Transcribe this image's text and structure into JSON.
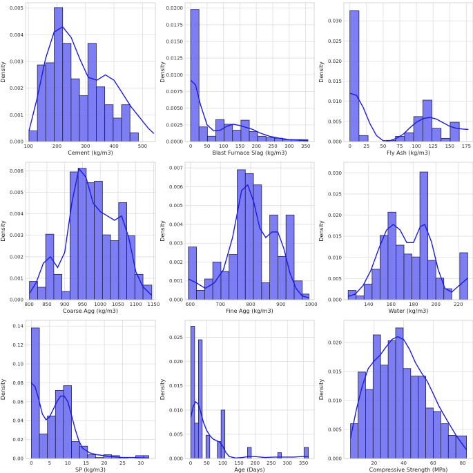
{
  "chart_data": [
    {
      "type": "bar",
      "xlabel": "Cement (kg/m3)",
      "ylabel": "Density",
      "xlim": [
        90,
        545
      ],
      "ylim": [
        0,
        0.0052
      ],
      "xticks": [
        100,
        200,
        300,
        400,
        500
      ],
      "yticks": [
        0.0,
        0.001,
        0.002,
        0.003,
        0.004,
        0.005
      ],
      "ytick_labels": [
        "0.000",
        "0.001",
        "0.002",
        "0.003",
        "0.004",
        "0.005"
      ],
      "xtick_labels": [
        "100",
        "200",
        "300",
        "400",
        "500"
      ],
      "bin_edges": [
        102,
        131.5,
        161,
        190.5,
        220,
        249.5,
        279,
        308.5,
        338,
        367.5,
        397,
        426.5,
        456,
        485.5,
        515,
        540
      ],
      "values": [
        0.0004,
        0.00287,
        0.00295,
        0.00502,
        0.00368,
        0.00235,
        0.00172,
        0.00368,
        0.00205,
        0.00138,
        0.00088,
        0.00138,
        0.00033,
        0.0,
        0.0
      ],
      "kde_x": [
        102,
        130,
        160,
        190,
        220,
        250,
        280,
        310,
        340,
        370,
        400,
        430,
        460,
        490,
        520,
        540
      ],
      "kde_y": [
        0.0004,
        0.0016,
        0.0031,
        0.0041,
        0.0043,
        0.0039,
        0.0031,
        0.0024,
        0.0023,
        0.0025,
        0.0023,
        0.0018,
        0.0013,
        0.0009,
        0.0005,
        0.0003
      ]
    },
    {
      "type": "bar",
      "xlabel": "Blast Furnace Slag (kg/m3)",
      "ylabel": "Density",
      "xlim": [
        -17,
        376
      ],
      "ylim": [
        0,
        0.0208
      ],
      "xticks": [
        0,
        50,
        100,
        150,
        200,
        250,
        300,
        350
      ],
      "xtick_labels": [
        "0",
        "50",
        "100",
        "150",
        "200",
        "250",
        "300",
        "350"
      ],
      "yticks": [
        0.0,
        0.0025,
        0.005,
        0.0075,
        0.01,
        0.0125,
        0.015,
        0.0175,
        0.02
      ],
      "ytick_labels": [
        "0.0000",
        "0.0025",
        "0.0050",
        "0.0075",
        "0.0100",
        "0.0125",
        "0.0150",
        "0.0175",
        "0.0200"
      ],
      "bin_edges": [
        0,
        25.5,
        51,
        76.5,
        102,
        127.5,
        153,
        178.5,
        204,
        229.5,
        255,
        280.5,
        306,
        331.5,
        357
      ],
      "values": [
        0.0198,
        0.0022,
        0.0008,
        0.0033,
        0.0026,
        0.0017,
        0.0032,
        0.0015,
        0.0008,
        0.0006,
        0.0005,
        0.0003,
        0.0003,
        0.0003
      ],
      "kde_x": [
        0,
        15,
        30,
        50,
        70,
        90,
        110,
        130,
        150,
        170,
        190,
        210,
        240,
        270,
        300,
        330,
        357
      ],
      "kde_y": [
        0.0092,
        0.0085,
        0.0055,
        0.0025,
        0.0016,
        0.0017,
        0.0023,
        0.0026,
        0.0024,
        0.0021,
        0.0018,
        0.0013,
        0.0008,
        0.0005,
        0.0003,
        0.0002,
        0.0001
      ]
    },
    {
      "type": "bar",
      "xlabel": "Fly Ash (kg/m3)",
      "ylabel": "Density",
      "xlim": [
        -9,
        185
      ],
      "ylim": [
        0,
        0.0345
      ],
      "xticks": [
        0,
        25,
        50,
        75,
        100,
        125,
        150,
        175
      ],
      "xtick_labels": [
        "0",
        "25",
        "50",
        "75",
        "100",
        "125",
        "150",
        "175"
      ],
      "yticks": [
        0.0,
        0.005,
        0.01,
        0.015,
        0.02,
        0.025,
        0.03
      ],
      "ytick_labels": [
        "0.000",
        "0.005",
        "0.010",
        "0.015",
        "0.020",
        "0.025",
        "0.030"
      ],
      "bin_edges": [
        0,
        13.7,
        27.4,
        41.1,
        54.8,
        68.5,
        82.2,
        95.9,
        109.6,
        123.3,
        137,
        150.7,
        164.4,
        178
      ],
      "values": [
        0.0325,
        0.0015,
        0.0,
        0.0,
        0.0003,
        0.0013,
        0.0022,
        0.0062,
        0.0103,
        0.0033,
        0.0008,
        0.0048,
        0.0
      ],
      "kde_x": [
        0,
        10,
        20,
        30,
        40,
        50,
        60,
        70,
        80,
        90,
        100,
        110,
        120,
        130,
        140,
        150,
        160,
        170,
        178
      ],
      "kde_y": [
        0.012,
        0.0115,
        0.0085,
        0.0045,
        0.0015,
        0.0002,
        0.0002,
        0.0008,
        0.0018,
        0.0034,
        0.0048,
        0.0057,
        0.006,
        0.0056,
        0.0047,
        0.0038,
        0.0033,
        0.0031,
        0.003
      ]
    },
    {
      "type": "bar",
      "xlabel": "Coarse Agg (kg/m3)",
      "ylabel": "Density",
      "xlim": [
        790,
        1155
      ],
      "ylim": [
        0,
        0.0064
      ],
      "xticks": [
        800,
        850,
        900,
        950,
        1000,
        1050,
        1100,
        1150
      ],
      "xtick_labels": [
        "800",
        "850",
        "900",
        "950",
        "1000",
        "1050",
        "1100",
        "1150"
      ],
      "yticks": [
        0.0,
        0.001,
        0.002,
        0.003,
        0.004,
        0.005,
        0.006
      ],
      "ytick_labels": [
        "0.000",
        "0.001",
        "0.002",
        "0.003",
        "0.004",
        "0.005",
        "0.006"
      ],
      "bin_edges": [
        801,
        823.8,
        846.6,
        869.4,
        892.2,
        915,
        937.8,
        960.6,
        983.4,
        1006.2,
        1029,
        1051.8,
        1074.6,
        1097.4,
        1120.2,
        1145
      ],
      "values": [
        0.00085,
        0.00058,
        0.00305,
        0.00118,
        0.00038,
        0.00595,
        0.00612,
        0.00545,
        0.00552,
        0.00302,
        0.00275,
        0.00452,
        0.00298,
        0.00118,
        0.00068
      ],
      "kde_x": [
        801,
        820,
        840,
        860,
        880,
        900,
        920,
        940,
        960,
        980,
        1000,
        1020,
        1040,
        1060,
        1080,
        1100,
        1120,
        1145
      ],
      "kde_y": [
        0.0003,
        0.0008,
        0.0017,
        0.002,
        0.0015,
        0.0022,
        0.0045,
        0.0061,
        0.0057,
        0.0045,
        0.0041,
        0.0039,
        0.0037,
        0.0039,
        0.0029,
        0.0013,
        0.0006,
        0.0002
      ]
    },
    {
      "type": "bar",
      "xlabel": "Fine Agg (kg/m3)",
      "ylabel": "Density",
      "xlim": [
        583,
        1010
      ],
      "ylim": [
        0,
        0.0073
      ],
      "xticks": [
        600,
        700,
        800,
        900,
        1000
      ],
      "xtick_labels": [
        "600",
        "700",
        "800",
        "900",
        "1000"
      ],
      "yticks": [
        0.0,
        0.001,
        0.002,
        0.003,
        0.004,
        0.005,
        0.006,
        0.007
      ],
      "ytick_labels": [
        "0.000",
        "0.001",
        "0.002",
        "0.003",
        "0.004",
        "0.005",
        "0.006",
        "0.007"
      ],
      "bin_edges": [
        594,
        620.9,
        647.8,
        674.7,
        701.6,
        728.5,
        755.4,
        782.3,
        809.2,
        836.1,
        863,
        889.9,
        916.8,
        943.7,
        970.6,
        993
      ],
      "values": [
        0.0028,
        0.0005,
        0.0011,
        0.002,
        0.0015,
        0.0024,
        0.0069,
        0.0067,
        0.0061,
        0.0009,
        0.0045,
        0.0023,
        0.0045,
        0.001,
        0.0003
      ],
      "kde_x": [
        594,
        620,
        650,
        680,
        710,
        740,
        770,
        790,
        810,
        830,
        850,
        870,
        890,
        910,
        930,
        950,
        970,
        993
      ],
      "kde_y": [
        0.0011,
        0.0009,
        0.0006,
        0.0009,
        0.0016,
        0.0033,
        0.0058,
        0.0061,
        0.0052,
        0.0038,
        0.0033,
        0.0036,
        0.0036,
        0.0027,
        0.0014,
        0.0006,
        0.0002,
        0.0001
      ]
    },
    {
      "type": "bar",
      "xlabel": "Water (kg/m3)",
      "ylabel": "Density",
      "xlim": [
        118,
        233
      ],
      "ylim": [
        0,
        0.0325
      ],
      "xticks": [
        140,
        160,
        180,
        200,
        220
      ],
      "xtick_labels": [
        "140",
        "160",
        "180",
        "200",
        "220"
      ],
      "yticks": [
        0.0,
        0.005,
        0.01,
        0.015,
        0.02,
        0.025,
        0.03
      ],
      "ytick_labels": [
        "0.000",
        "0.005",
        "0.010",
        "0.015",
        "0.020",
        "0.025",
        "0.030"
      ],
      "bin_edges": [
        121.8,
        128.9,
        136,
        143.1,
        150.2,
        157.3,
        164.4,
        171.5,
        178.6,
        185.7,
        192.8,
        199.9,
        207,
        214.1,
        221.2,
        228.3
      ],
      "values": [
        0.0022,
        0.0009,
        0.0037,
        0.0072,
        0.0152,
        0.0207,
        0.0129,
        0.0108,
        0.0101,
        0.0302,
        0.0093,
        0.0051,
        0.0026,
        0.0,
        0.0111
      ],
      "kde_x": [
        121.8,
        128,
        135,
        142,
        149,
        156,
        162,
        168,
        174,
        180,
        186,
        190,
        196,
        202,
        208,
        214,
        220,
        228.3
      ],
      "kde_y": [
        0.0008,
        0.0013,
        0.0033,
        0.0069,
        0.012,
        0.0165,
        0.0178,
        0.0165,
        0.0135,
        0.0135,
        0.0173,
        0.0178,
        0.0137,
        0.0071,
        0.0027,
        0.0018,
        0.0032,
        0.0051
      ]
    },
    {
      "type": "bar",
      "xlabel": "SP (kg/m3)",
      "ylabel": "Density",
      "xlim": [
        -1.6,
        34
      ],
      "ylim": [
        0,
        0.146
      ],
      "xticks": [
        0,
        5,
        10,
        15,
        20,
        25,
        30
      ],
      "xtick_labels": [
        "0",
        "5",
        "10",
        "15",
        "20",
        "25",
        "30"
      ],
      "yticks": [
        0.0,
        0.02,
        0.04,
        0.06,
        0.08,
        0.1,
        0.12,
        0.14
      ],
      "ytick_labels": [
        "0.00",
        "0.02",
        "0.04",
        "0.06",
        "0.08",
        "0.10",
        "0.12",
        "0.14"
      ],
      "bin_edges": [
        0,
        2.2,
        4.4,
        6.6,
        8.8,
        11,
        13.2,
        15.4,
        17.6,
        19.8,
        22,
        24.2,
        26.4,
        28.6,
        30.8,
        32.2
      ],
      "values": [
        0.138,
        0.026,
        0.045,
        0.072,
        0.077,
        0.018,
        0.013,
        0.004,
        0.001,
        0.004,
        0.003,
        0.001,
        0.0,
        0.003,
        0.003
      ],
      "kde_x": [
        0,
        1,
        2,
        3,
        4,
        5,
        6,
        7,
        8,
        9,
        10,
        11,
        12,
        13,
        14,
        16,
        18,
        20,
        22,
        25,
        28,
        32.2
      ],
      "kde_y": [
        0.08,
        0.076,
        0.063,
        0.047,
        0.041,
        0.044,
        0.052,
        0.06,
        0.066,
        0.066,
        0.06,
        0.046,
        0.031,
        0.019,
        0.011,
        0.006,
        0.004,
        0.003,
        0.002,
        0.001,
        0.001,
        0.0005
      ]
    },
    {
      "type": "bar",
      "xlabel": "Age (Days)",
      "ylabel": "Density",
      "xlim": [
        -17,
        383
      ],
      "ylim": [
        0,
        0.0285
      ],
      "xticks": [
        0,
        50,
        100,
        150,
        200,
        250,
        300,
        350
      ],
      "xtick_labels": [
        "0",
        "50",
        "100",
        "150",
        "200",
        "250",
        "300",
        "350"
      ],
      "yticks": [
        0.0,
        0.005,
        0.01,
        0.015,
        0.02,
        0.025
      ],
      "ytick_labels": [
        "0.000",
        "0.005",
        "0.010",
        "0.015",
        "0.020",
        "0.025"
      ],
      "bin_edges": [
        1,
        12.7,
        24.4,
        36.1,
        47.8,
        59.5,
        71.2,
        82.9,
        94.6,
        106.3,
        118,
        129.7,
        141.4,
        153.1,
        164.8,
        176.5,
        188.2,
        199.9,
        211.6,
        223.3,
        235,
        246.7,
        258.4,
        270.1,
        281.8,
        293.5,
        305.2,
        316.9,
        328.6,
        340.3,
        352,
        365
      ],
      "values": [
        0.0273,
        0.0073,
        0.0245,
        0.0,
        0.0048,
        0.0,
        0.0,
        0.0035,
        0.01,
        0.0,
        0.0,
        0.0,
        0.0,
        0.0,
        0.0,
        0.0023,
        0.0,
        0.0,
        0.0,
        0.0,
        0.0,
        0.0,
        0.0,
        0.0012,
        0.0,
        0.0,
        0.0,
        0.0,
        0.0,
        0.0,
        0.0023
      ],
      "kde_x": [
        1,
        8,
        16,
        24,
        32,
        40,
        50,
        60,
        70,
        80,
        90,
        100,
        110,
        120,
        140,
        160,
        180,
        200,
        230,
        260,
        290,
        320,
        345,
        365
      ],
      "kde_y": [
        0.0085,
        0.0107,
        0.0117,
        0.0112,
        0.0095,
        0.0075,
        0.0058,
        0.0047,
        0.004,
        0.0037,
        0.0034,
        0.0025,
        0.0012,
        0.0004,
        0.0001,
        0.0002,
        0.0004,
        0.0004,
        0.0002,
        0.0003,
        0.0003,
        0.0003,
        0.0004,
        0.0004
      ]
    },
    {
      "type": "bar",
      "xlabel": "Compressive Strength (MPa)",
      "ylabel": "Density",
      "xlim": [
        -0.5,
        87
      ],
      "ylim": [
        0,
        0.0238
      ],
      "xticks": [
        20,
        40,
        60,
        80
      ],
      "xtick_labels": [
        "20",
        "40",
        "60",
        "80"
      ],
      "yticks": [
        0.0,
        0.005,
        0.01,
        0.015,
        0.02
      ],
      "ytick_labels": [
        "0.000",
        "0.005",
        "0.010",
        "0.015",
        "0.020"
      ],
      "bin_edges": [
        4,
        9.1,
        14.2,
        19.3,
        24.4,
        29.5,
        34.6,
        39.7,
        44.8,
        49.9,
        55,
        60.1,
        65.2,
        70.3,
        75.4,
        82.6
      ],
      "values": [
        0.006,
        0.0149,
        0.0119,
        0.0213,
        0.0161,
        0.0203,
        0.0225,
        0.0155,
        0.0142,
        0.0142,
        0.0087,
        0.0081,
        0.006,
        0.004,
        0.0039
      ],
      "kde_x": [
        4,
        8,
        12,
        16,
        20,
        24,
        28,
        32,
        36,
        40,
        44,
        48,
        52,
        56,
        60,
        64,
        68,
        72,
        76,
        82.6
      ],
      "kde_y": [
        0.0035,
        0.0085,
        0.0125,
        0.0155,
        0.0168,
        0.0178,
        0.0192,
        0.0205,
        0.021,
        0.0205,
        0.0188,
        0.0165,
        0.0148,
        0.0133,
        0.0112,
        0.009,
        0.0072,
        0.0055,
        0.0038,
        0.0015
      ]
    }
  ],
  "colors": {
    "bar": "#6666f2",
    "bar_edge": "#222244",
    "kde": "#1a1ae6",
    "grid": "#dddddd"
  }
}
